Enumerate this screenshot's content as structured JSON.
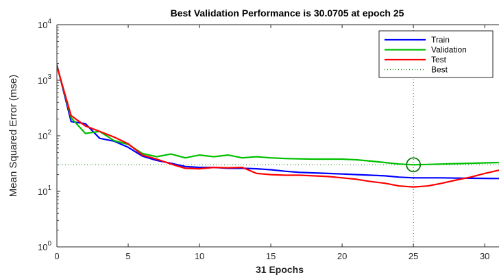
{
  "chart_data": {
    "type": "line",
    "title": "Best Validation Performance is 30.0705 at epoch 25",
    "xlabel": "31 Epochs",
    "ylabel": "Mean Squared Error  (mse)",
    "xlim": [
      0,
      31
    ],
    "ylim": [
      1,
      10000
    ],
    "yscale": "log",
    "grid": false,
    "legend_position": "top-right",
    "x_ticks": [
      0,
      5,
      10,
      15,
      20,
      25,
      30
    ],
    "x_tick_labels": [
      "0",
      "5",
      "10",
      "15",
      "20",
      "25",
      "30"
    ],
    "y_ticks": [
      1,
      10,
      100,
      1000,
      10000
    ],
    "y_tick_labels": [
      {
        "base": "10",
        "exp": "0"
      },
      {
        "base": "10",
        "exp": "1"
      },
      {
        "base": "10",
        "exp": "2"
      },
      {
        "base": "10",
        "exp": "3"
      },
      {
        "base": "10",
        "exp": "4"
      }
    ],
    "x": [
      0,
      1,
      2,
      3,
      4,
      5,
      6,
      7,
      8,
      9,
      10,
      11,
      12,
      13,
      14,
      15,
      16,
      17,
      18,
      19,
      20,
      21,
      22,
      23,
      24,
      25,
      26,
      27,
      28,
      29,
      30,
      31
    ],
    "series": [
      {
        "name": "Train",
        "color": "#0000ff",
        "values": [
          1900,
          180,
          165,
          90,
          80,
          62,
          43,
          36,
          32,
          28,
          27,
          27,
          26,
          26,
          25.5,
          24.5,
          23,
          22,
          21.5,
          21,
          20.5,
          20,
          19.5,
          19,
          18,
          17.5,
          17.5,
          17.5,
          17.3,
          17.2,
          17.1,
          17
        ]
      },
      {
        "name": "Validation",
        "color": "#00c000",
        "values": [
          1850,
          210,
          110,
          120,
          82,
          70,
          48,
          42,
          47,
          40,
          45,
          42,
          45,
          40,
          42,
          40,
          39,
          38.5,
          38,
          38,
          38,
          37,
          35,
          33,
          31,
          30.07,
          30.5,
          31,
          31.5,
          32,
          32.5,
          33
        ]
      },
      {
        "name": "Test",
        "color": "#ff0000",
        "values": [
          1800,
          230,
          150,
          120,
          95,
          72,
          45,
          38,
          31,
          26,
          25.5,
          27,
          26.5,
          27,
          21,
          20,
          19.5,
          19.5,
          19,
          18.5,
          17.5,
          16.5,
          15,
          14,
          12.5,
          12,
          12.5,
          14,
          16,
          18,
          21,
          24
        ]
      }
    ],
    "best": {
      "name": "Best",
      "epoch": 25,
      "value": 30.0705,
      "color": "#008000"
    }
  }
}
